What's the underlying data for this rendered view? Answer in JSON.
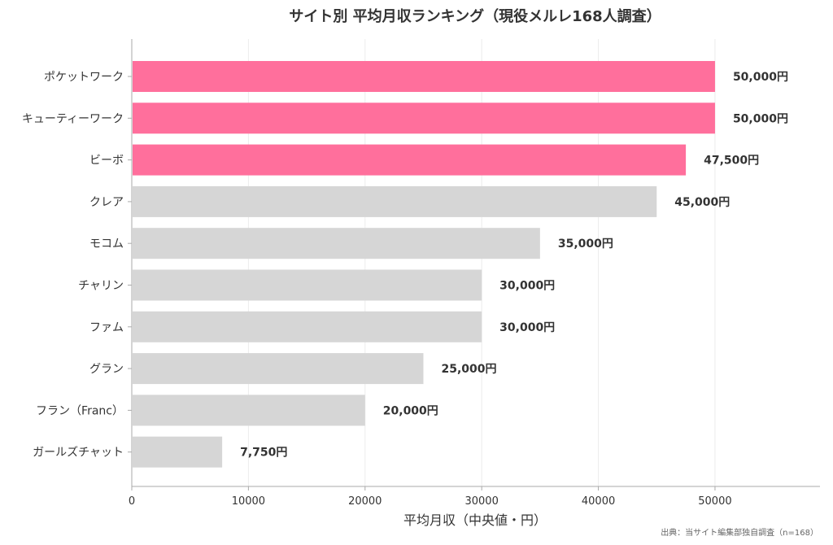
{
  "chart_data": {
    "type": "bar",
    "orientation": "horizontal",
    "title": "サイト別 平均月収ランキング（現役メルレ168人調査）",
    "xlabel": "平均月収（中央値・円）",
    "ylabel": "",
    "xlim": [
      0,
      59000
    ],
    "xticks": [
      0,
      10000,
      20000,
      30000,
      40000,
      50000
    ],
    "grid": "vertical",
    "legend": "none",
    "categories": [
      "ポケットワーク",
      "キューティーワーク",
      "ビーボ",
      "クレア",
      "モコム",
      "チャリン",
      "ファム",
      "グラン",
      "フラン（Franc）",
      "ガールズチャット"
    ],
    "values": [
      50000,
      50000,
      47500,
      45000,
      35000,
      30000,
      30000,
      25000,
      20000,
      7750
    ],
    "value_labels": [
      "50,000円",
      "50,000円",
      "47,500円",
      "45,000円",
      "35,000円",
      "30,000円",
      "30,000円",
      "25,000円",
      "20,000円",
      "7,750円"
    ],
    "highlight": [
      true,
      true,
      true,
      false,
      false,
      false,
      false,
      false,
      false,
      false
    ],
    "colors": {
      "highlight": "#ff6f9c",
      "default": "#d6d6d6",
      "text": "#333333",
      "grid": "#ececec",
      "axis": "#aaaaaa"
    },
    "source": "出典：当サイト編集部独自調査（n=168）"
  }
}
